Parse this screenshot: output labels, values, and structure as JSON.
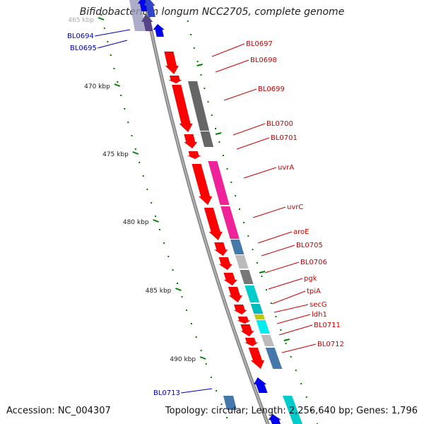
{
  "title": "Bifidobacterium longum NCC2705, complete genome",
  "footer": {
    "accession": "Accession: NC_004307",
    "summary": "Topology: circular; Length: 2,256,640 bp; Genes: 1,796"
  },
  "ruler": {
    "labels": [
      "465 kbp",
      "470 kbp",
      "475 kbp",
      "480 kbp",
      "485 kbp",
      "490 kbp"
    ]
  },
  "colors": {
    "forward_strand": "#ff0000",
    "reverse_strand": "#0000ee",
    "backbone": "#888888",
    "tick": "#008000",
    "label_forward": "#cc0000",
    "label_reverse": "#0000bb"
  },
  "genes": [
    {
      "name": "BL0694",
      "strand": "reverse"
    },
    {
      "name": "BL0695",
      "strand": "reverse"
    },
    {
      "name": "BL0697",
      "strand": "forward"
    },
    {
      "name": "BL0698",
      "strand": "forward"
    },
    {
      "name": "BL0699",
      "strand": "forward"
    },
    {
      "name": "BL0700",
      "strand": "forward"
    },
    {
      "name": "BL0701",
      "strand": "forward"
    },
    {
      "name": "uvrA",
      "strand": "forward"
    },
    {
      "name": "uvrC",
      "strand": "forward"
    },
    {
      "name": "aroE",
      "strand": "forward"
    },
    {
      "name": "BL0705",
      "strand": "forward"
    },
    {
      "name": "BL0706",
      "strand": "forward"
    },
    {
      "name": "pgk",
      "strand": "forward"
    },
    {
      "name": "tpiA",
      "strand": "forward"
    },
    {
      "name": "secG",
      "strand": "forward"
    },
    {
      "name": "ldh1",
      "strand": "forward"
    },
    {
      "name": "BL0711",
      "strand": "forward"
    },
    {
      "name": "BL0712",
      "strand": "forward"
    },
    {
      "name": "BL0713",
      "strand": "reverse"
    }
  ]
}
